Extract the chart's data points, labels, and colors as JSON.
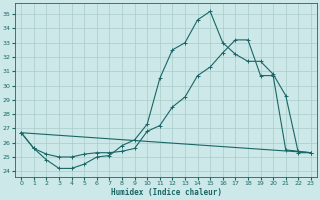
{
  "xlabel": "Humidex (Indice chaleur)",
  "bg_color": "#cce8e8",
  "grid_color": "#aacccc",
  "line_color": "#1a6666",
  "xlim": [
    -0.5,
    23.5
  ],
  "ylim": [
    23.6,
    35.8
  ],
  "yticks": [
    24,
    25,
    26,
    27,
    28,
    29,
    30,
    31,
    32,
    33,
    34,
    35
  ],
  "xticks": [
    0,
    1,
    2,
    3,
    4,
    5,
    6,
    7,
    8,
    9,
    10,
    11,
    12,
    13,
    14,
    15,
    16,
    17,
    18,
    19,
    20,
    21,
    22,
    23
  ],
  "line1_x": [
    0,
    1,
    2,
    3,
    4,
    5,
    6,
    7,
    8,
    9,
    10,
    11,
    12,
    13,
    14,
    15,
    16,
    17,
    18,
    19,
    20,
    21,
    22,
    23
  ],
  "line1_y": [
    26.7,
    25.6,
    24.8,
    24.2,
    24.2,
    24.5,
    25.0,
    25.1,
    25.8,
    26.2,
    27.3,
    30.5,
    32.5,
    33.0,
    34.6,
    35.2,
    33.0,
    32.2,
    31.7,
    31.7,
    30.8,
    29.3,
    25.3,
    25.3
  ],
  "line2_x": [
    0,
    1,
    2,
    3,
    4,
    5,
    6,
    7,
    8,
    9,
    10,
    11,
    12,
    13,
    14,
    15,
    16,
    17,
    18,
    19,
    20,
    21,
    22,
    23
  ],
  "line2_y": [
    26.7,
    25.6,
    25.2,
    25.0,
    25.0,
    25.2,
    25.3,
    25.3,
    25.4,
    25.6,
    26.8,
    27.2,
    28.5,
    29.2,
    30.7,
    31.3,
    32.3,
    33.2,
    33.2,
    30.7,
    30.7,
    25.5,
    25.4,
    25.3
  ],
  "line3_x": [
    0,
    23
  ],
  "line3_y": [
    26.7,
    25.3
  ]
}
